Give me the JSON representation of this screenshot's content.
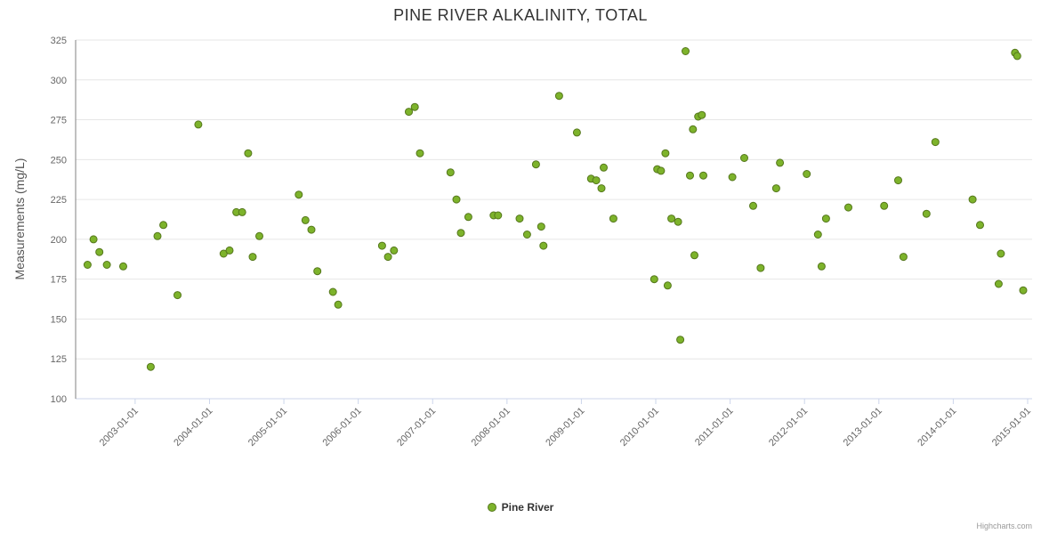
{
  "credits": "Highcharts.com",
  "legend": {
    "label": "Pine River"
  },
  "colors": {
    "point_fill": "#7db32b",
    "point_stroke": "#55771c",
    "grid_line": "#e6e6e6",
    "x_axis_line": "#ccd6eb",
    "y_axis_line": "#808080",
    "tick_mark": "#ccd6eb",
    "tick_label": "#666666"
  },
  "chart_data": {
    "type": "scatter",
    "title": "PINE RIVER ALKALINITY, TOTAL",
    "xlabel": "",
    "ylabel": "Measurements (mg/L)",
    "ylim": [
      100,
      325
    ],
    "xlim": [
      2002.2,
      2015.06
    ],
    "grid": "horizontal",
    "legend_position": "bottom",
    "y_ticks": [
      100,
      125,
      150,
      175,
      200,
      225,
      250,
      275,
      300,
      325
    ],
    "x_tick_positions": [
      2003,
      2004,
      2005,
      2006,
      2007,
      2008,
      2009,
      2010,
      2011,
      2012,
      2013,
      2014,
      2015
    ],
    "x_tick_labels": [
      "2003-01-01",
      "2004-01-01",
      "2005-01-01",
      "2006-01-01",
      "2007-01-01",
      "2008-01-01",
      "2009-01-01",
      "2010-01-01",
      "2011-01-01",
      "2012-01-01",
      "2013-01-01",
      "2014-01-01",
      "2015-01-01"
    ],
    "series": [
      {
        "name": "Pine River",
        "points": [
          [
            2002.36,
            184
          ],
          [
            2002.44,
            200
          ],
          [
            2002.52,
            192
          ],
          [
            2002.62,
            184
          ],
          [
            2002.84,
            183
          ],
          [
            2003.21,
            120
          ],
          [
            2003.3,
            202
          ],
          [
            2003.38,
            209
          ],
          [
            2003.57,
            165
          ],
          [
            2003.85,
            272
          ],
          [
            2004.19,
            191
          ],
          [
            2004.27,
            193
          ],
          [
            2004.36,
            217
          ],
          [
            2004.44,
            217
          ],
          [
            2004.52,
            254
          ],
          [
            2004.58,
            189
          ],
          [
            2004.67,
            202
          ],
          [
            2005.2,
            228
          ],
          [
            2005.29,
            212
          ],
          [
            2005.37,
            206
          ],
          [
            2005.45,
            180
          ],
          [
            2005.66,
            167
          ],
          [
            2005.73,
            159
          ],
          [
            2006.32,
            196
          ],
          [
            2006.4,
            189
          ],
          [
            2006.48,
            193
          ],
          [
            2006.68,
            280
          ],
          [
            2006.76,
            283
          ],
          [
            2006.83,
            254
          ],
          [
            2007.24,
            242
          ],
          [
            2007.32,
            225
          ],
          [
            2007.38,
            204
          ],
          [
            2007.48,
            214
          ],
          [
            2007.82,
            215
          ],
          [
            2007.88,
            215
          ],
          [
            2008.17,
            213
          ],
          [
            2008.27,
            203
          ],
          [
            2008.39,
            247
          ],
          [
            2008.46,
            208
          ],
          [
            2008.49,
            196
          ],
          [
            2008.7,
            290
          ],
          [
            2008.94,
            267
          ],
          [
            2009.13,
            238
          ],
          [
            2009.2,
            237
          ],
          [
            2009.27,
            232
          ],
          [
            2009.3,
            245
          ],
          [
            2009.43,
            213
          ],
          [
            2009.98,
            175
          ],
          [
            2010.02,
            244
          ],
          [
            2010.07,
            243
          ],
          [
            2010.13,
            254
          ],
          [
            2010.16,
            171
          ],
          [
            2010.21,
            213
          ],
          [
            2010.3,
            211
          ],
          [
            2010.33,
            137
          ],
          [
            2010.4,
            318
          ],
          [
            2010.46,
            240
          ],
          [
            2010.5,
            269
          ],
          [
            2010.52,
            190
          ],
          [
            2010.57,
            277
          ],
          [
            2010.62,
            278
          ],
          [
            2010.64,
            240
          ],
          [
            2011.03,
            239
          ],
          [
            2011.19,
            251
          ],
          [
            2011.31,
            221
          ],
          [
            2011.41,
            182
          ],
          [
            2011.62,
            232
          ],
          [
            2011.67,
            248
          ],
          [
            2012.03,
            241
          ],
          [
            2012.18,
            203
          ],
          [
            2012.23,
            183
          ],
          [
            2012.29,
            213
          ],
          [
            2012.59,
            220
          ],
          [
            2013.07,
            221
          ],
          [
            2013.26,
            237
          ],
          [
            2013.33,
            189
          ],
          [
            2013.64,
            216
          ],
          [
            2013.76,
            261
          ],
          [
            2014.26,
            225
          ],
          [
            2014.36,
            209
          ],
          [
            2014.61,
            172
          ],
          [
            2014.64,
            191
          ],
          [
            2014.83,
            317
          ],
          [
            2014.86,
            315
          ],
          [
            2014.94,
            168
          ]
        ]
      }
    ]
  }
}
